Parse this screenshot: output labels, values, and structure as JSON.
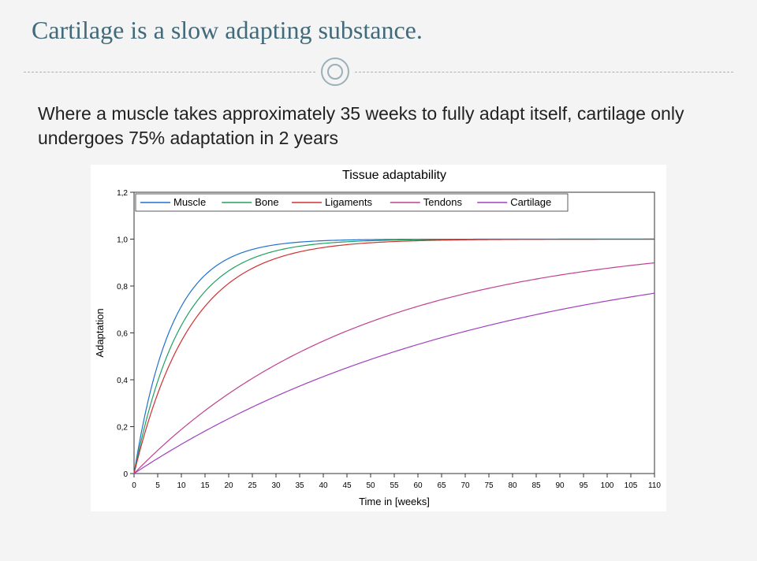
{
  "title": "Cartilage is a slow adapting substance.",
  "body": "Where a muscle takes approximately 35 weeks to fully adapt itself, cartilage only undergoes 75% adaptation in 2 years",
  "chart": {
    "type": "line",
    "title": "Tissue adaptability",
    "title_fontsize": 16,
    "xlabel": "Time in [weeks]",
    "ylabel": "Adaptation",
    "label_fontsize": 13,
    "tick_fontsize": 10,
    "xlim": [
      0,
      110
    ],
    "ylim": [
      0,
      1.2
    ],
    "xtick_step": 5,
    "ytick_step": 0.2,
    "background_color": "#ffffff",
    "plot_box_color": "#333333",
    "grid_on": false,
    "line_width": 1.2,
    "legend_position": "top-inside",
    "legend_labels": [
      "Muscle",
      "Bone",
      "Ligaments",
      "Tendons",
      "Cartilage"
    ],
    "legend_colors": [
      "#2070d0",
      "#20a060",
      "#d03030",
      "#c04090",
      "#a040c0"
    ],
    "legend_fontsize": 13,
    "series": [
      {
        "name": "Muscle",
        "color": "#2070d0",
        "tau": 8
      },
      {
        "name": "Bone",
        "color": "#20a060",
        "tau": 10
      },
      {
        "name": "Ligaments",
        "color": "#d03030",
        "tau": 12
      },
      {
        "name": "Tendons",
        "color": "#c04090",
        "tau": 48
      },
      {
        "name": "Cartilage",
        "color": "#a040c0",
        "tau": 75
      }
    ]
  }
}
